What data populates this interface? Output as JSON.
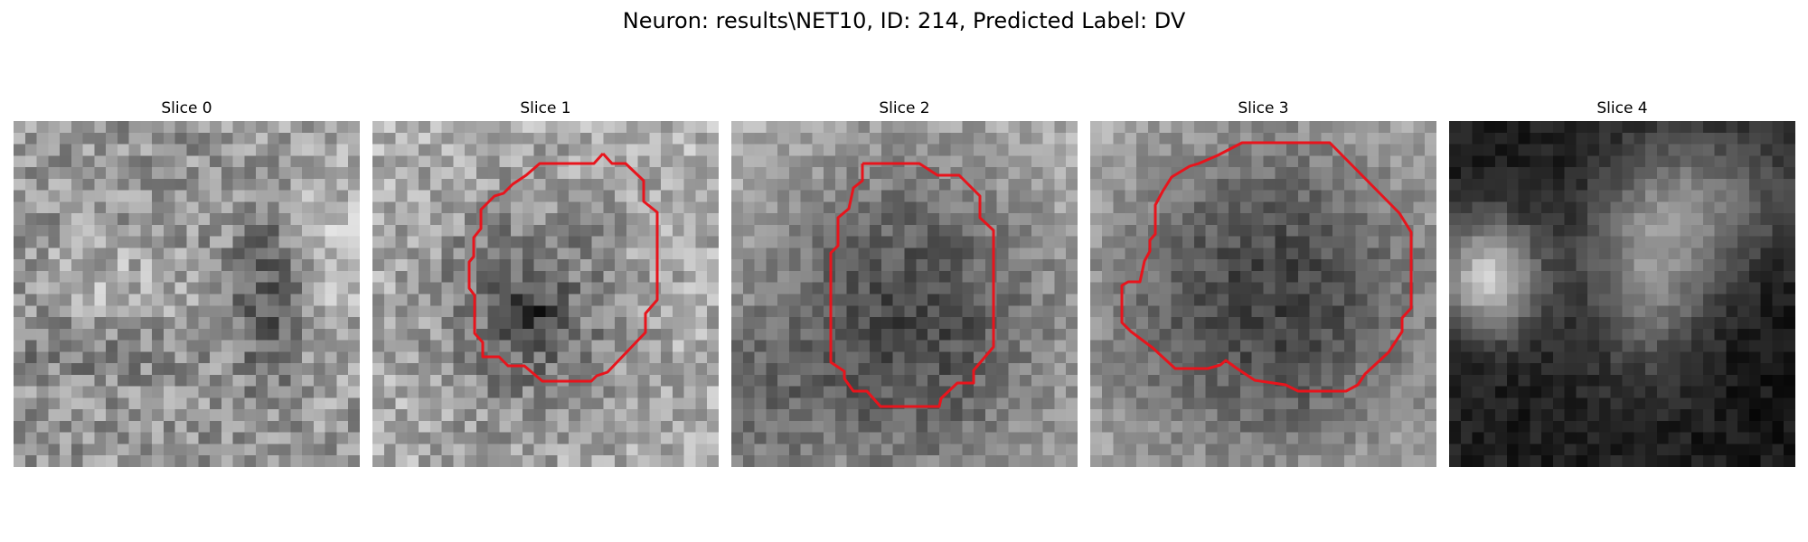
{
  "figure": {
    "title": "Neuron: results\\NET10, ID: 214, Predicted Label: DV",
    "contour_color": "#e8141c"
  },
  "panels": [
    {
      "title": "Slice 0",
      "has_contour": false
    },
    {
      "title": "Slice 1",
      "has_contour": true
    },
    {
      "title": "Slice 2",
      "has_contour": true
    },
    {
      "title": "Slice 3",
      "has_contour": true
    },
    {
      "title": "Slice 4",
      "has_contour": false
    }
  ]
}
